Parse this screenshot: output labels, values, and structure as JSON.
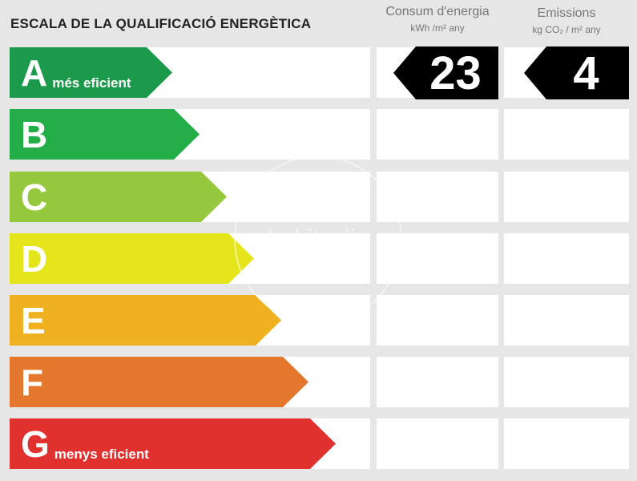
{
  "title": "ESCALA DE LA QUALIFICACIÓ ENERGÈTICA",
  "columns": {
    "consum": {
      "title": "Consum d'energia",
      "unit": "kWh /m² any"
    },
    "emissions": {
      "title": "Emissions",
      "unit": "kg CO₂ / m² any"
    }
  },
  "ratings": [
    {
      "letter": "A",
      "label": "més eficient",
      "color": "#1a9a4a"
    },
    {
      "letter": "B",
      "label": "",
      "color": "#22ad47"
    },
    {
      "letter": "C",
      "label": "",
      "color": "#95c83c"
    },
    {
      "letter": "D",
      "label": "",
      "color": "#e5e51c"
    },
    {
      "letter": "E",
      "label": "",
      "color": "#f0b121"
    },
    {
      "letter": "F",
      "label": "",
      "color": "#e2772d"
    },
    {
      "letter": "G",
      "label": "menys eficient",
      "color": "#e1312f"
    }
  ],
  "values": {
    "consum": "23",
    "emissions": "4"
  },
  "watermark": "habitaclia"
}
